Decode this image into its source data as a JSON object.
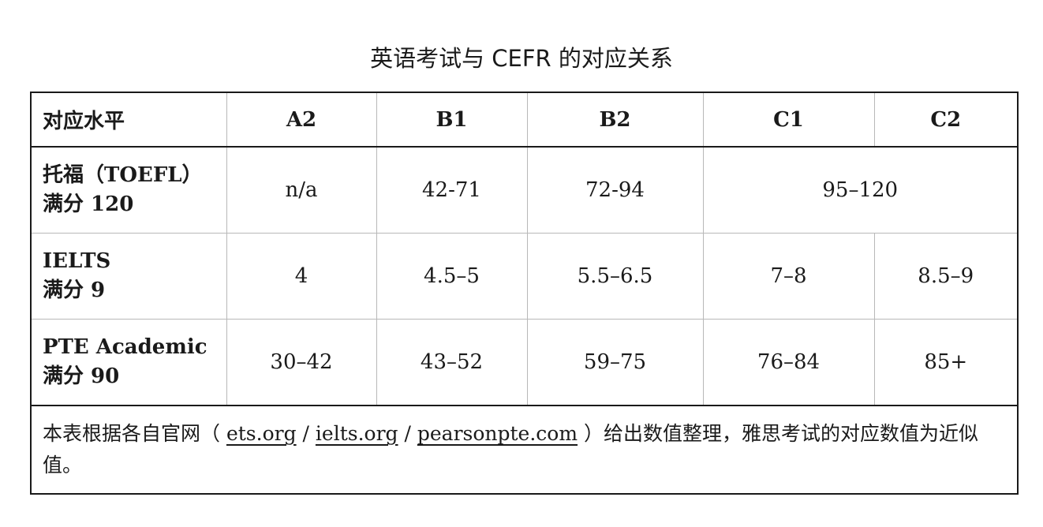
{
  "title": "英语考试与 CEFR 的对应关系",
  "table": {
    "header": {
      "first": "对应水平",
      "levels": [
        "A2",
        "B1",
        "B2",
        "C1",
        "C2"
      ]
    },
    "rows": [
      {
        "name": "托福（TOEFL）",
        "max": "满分 120",
        "a2": "n/a",
        "b1": "42-71",
        "b2": "72-94",
        "c1_c2": "95–120"
      },
      {
        "name": "IELTS",
        "max": "满分 9",
        "a2": "4",
        "b1": "4.5–5",
        "b2": "5.5–6.5",
        "c1": "7–8",
        "c2": "8.5–9"
      },
      {
        "name": "PTE Academic",
        "max": "满分 90",
        "a2": "30–42",
        "b1": "43–52",
        "b2": "59–75",
        "c1": "76–84",
        "c2": "85+"
      }
    ],
    "note": {
      "prefix": "本表根据各自官网（ ",
      "link1": "ets.org",
      "sep1": " / ",
      "link2": "ielts.org",
      "sep2": " / ",
      "link3": "pearsonpte.com",
      "suffix": " ）给出数值整理，雅思考试的对应数值为近似值。"
    }
  }
}
